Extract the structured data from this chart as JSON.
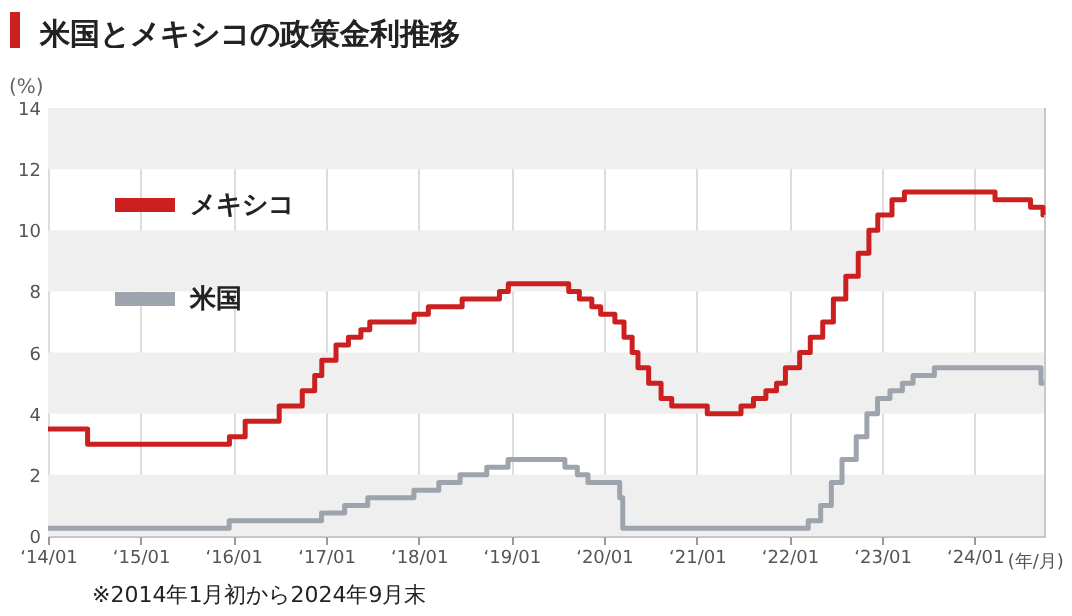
{
  "chart_data": {
    "type": "step",
    "title": "米国とメキシコの政策金利推移",
    "ylabel": "(%)",
    "xlabel": "(年/月)",
    "annotations": [
      "※2014年1月初から2024年9月末"
    ],
    "xlim": [
      "2014-01-01",
      "2024-09-30"
    ],
    "xticks": [
      {
        "value": "2014-01",
        "label": "‘14/01"
      },
      {
        "value": "2015-01",
        "label": "‘15/01"
      },
      {
        "value": "2016-01",
        "label": "‘16/01"
      },
      {
        "value": "2017-01",
        "label": "‘17/01"
      },
      {
        "value": "2018-01",
        "label": "‘18/01"
      },
      {
        "value": "2019-01",
        "label": "‘19/01"
      },
      {
        "value": "2020-01",
        "label": "‘20/01"
      },
      {
        "value": "2021-01",
        "label": "‘21/01"
      },
      {
        "value": "2022-01",
        "label": "‘22/01"
      },
      {
        "value": "2023-01",
        "label": "‘23/01"
      },
      {
        "value": "2024-01",
        "label": "‘24/01"
      }
    ],
    "ylim": [
      0,
      14
    ],
    "yticks": [
      0,
      2,
      4,
      6,
      8,
      10,
      12,
      14
    ],
    "grid": true,
    "legend": "top left",
    "line_style": "solid",
    "series": [
      {
        "name": "メキシコ",
        "color": "#cc1f1f",
        "x": [
          "2014-01-01",
          "2014-06-06",
          "2015-12-17",
          "2016-02-17",
          "2016-06-30",
          "2016-09-29",
          "2016-11-17",
          "2016-12-15",
          "2017-02-09",
          "2017-03-30",
          "2017-05-18",
          "2017-06-22",
          "2017-12-14",
          "2018-02-08",
          "2018-06-21",
          "2018-11-15",
          "2018-12-20",
          "2019-08-15",
          "2019-09-26",
          "2019-11-14",
          "2019-12-19",
          "2020-02-13",
          "2020-03-20",
          "2020-04-21",
          "2020-05-14",
          "2020-06-25",
          "2020-08-13",
          "2020-09-24",
          "2021-02-11",
          "2021-06-24",
          "2021-08-12",
          "2021-09-30",
          "2021-11-11",
          "2021-12-16",
          "2022-02-10",
          "2022-03-24",
          "2022-05-12",
          "2022-06-23",
          "2022-08-11",
          "2022-09-29",
          "2022-11-10",
          "2022-12-15",
          "2023-02-09",
          "2023-03-30",
          "2024-03-21",
          "2024-08-08",
          "2024-09-26",
          "2024-09-30"
        ],
        "values": [
          3.5,
          3.0,
          3.25,
          3.75,
          4.25,
          4.75,
          5.25,
          5.75,
          6.25,
          6.5,
          6.75,
          7.0,
          7.25,
          7.5,
          7.75,
          8.0,
          8.25,
          8.0,
          7.75,
          7.5,
          7.25,
          7.0,
          6.5,
          6.0,
          5.5,
          5.0,
          4.5,
          4.25,
          4.0,
          4.25,
          4.5,
          4.75,
          5.0,
          5.5,
          6.0,
          6.5,
          7.0,
          7.75,
          8.5,
          9.25,
          10.0,
          10.5,
          11.0,
          11.25,
          11.0,
          10.75,
          10.5,
          10.5
        ]
      },
      {
        "name": "米国",
        "color": "#9ea4ad",
        "x": [
          "2014-01-01",
          "2015-12-16",
          "2016-12-14",
          "2017-03-15",
          "2017-06-14",
          "2017-12-13",
          "2018-03-21",
          "2018-06-13",
          "2018-09-26",
          "2018-12-19",
          "2019-07-31",
          "2019-09-18",
          "2019-10-30",
          "2020-03-03",
          "2020-03-15",
          "2022-03-16",
          "2022-05-04",
          "2022-06-15",
          "2022-07-27",
          "2022-09-21",
          "2022-11-02",
          "2022-12-14",
          "2023-02-01",
          "2023-03-22",
          "2023-05-03",
          "2023-07-26",
          "2024-09-18",
          "2024-09-30"
        ],
        "values": [
          0.25,
          0.5,
          0.75,
          1.0,
          1.25,
          1.5,
          1.75,
          2.0,
          2.25,
          2.5,
          2.25,
          2.0,
          1.75,
          1.25,
          0.25,
          0.5,
          1.0,
          1.75,
          2.5,
          3.25,
          4.0,
          4.5,
          4.75,
          5.0,
          5.25,
          5.5,
          5.0,
          5.0
        ]
      }
    ]
  }
}
